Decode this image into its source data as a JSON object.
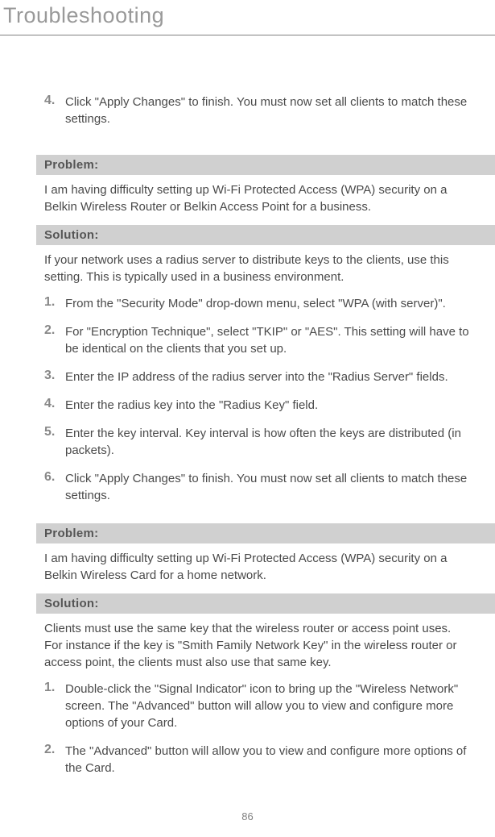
{
  "header": {
    "title": "Troubleshooting"
  },
  "top_step": {
    "num": "4.",
    "text": "Click \"Apply Changes\" to finish. You must now set all clients to match these settings."
  },
  "sec1": {
    "problem_label": "Problem:",
    "problem_text": "I am having difficulty setting up Wi-Fi Protected Access (WPA) security on a Belkin Wireless Router or Belkin Access Point for a business.",
    "solution_label": "Solution:",
    "solution_intro": "If your network uses a radius server to distribute keys to the clients, use this setting. This is typically used in a business environment.",
    "steps": [
      {
        "num": "1.",
        "text": "From the \"Security Mode\" drop-down menu, select \"WPA (with server)\"."
      },
      {
        "num": "2.",
        "text": "For \"Encryption Technique\", select \"TKIP\" or \"AES\". This setting will have to be identical on the clients that you set up."
      },
      {
        "num": "3.",
        "text": "Enter the IP address of the radius server into the \"Radius Server\" fields."
      },
      {
        "num": "4.",
        "text": "Enter the radius key into the \"Radius Key\" field."
      },
      {
        "num": "5.",
        "text": "Enter the key interval. Key interval is how often the keys are distributed (in packets)."
      },
      {
        "num": "6.",
        "text": "Click \"Apply Changes\" to finish. You must now set all clients to match these settings."
      }
    ]
  },
  "sec2": {
    "problem_label": "Problem:",
    "problem_text": "I am having difficulty setting up Wi-Fi Protected Access (WPA) security on a Belkin Wireless Card for a home network.",
    "solution_label": "Solution:",
    "solution_intro": "Clients must use the same key that the wireless router or access point uses. For instance if the key is \"Smith Family Network Key\" in the wireless router or access point, the clients must also use that same key.",
    "steps": [
      {
        "num": "1.",
        "text": "Double-click the \"Signal Indicator\" icon to bring up the \"Wireless Network\" screen. The \"Advanced\" button will allow you to view and configure more options of your Card."
      },
      {
        "num": "2.",
        "text": "The \"Advanced\" button will allow you to view and configure more options of the Card."
      }
    ]
  },
  "page_number": "86"
}
